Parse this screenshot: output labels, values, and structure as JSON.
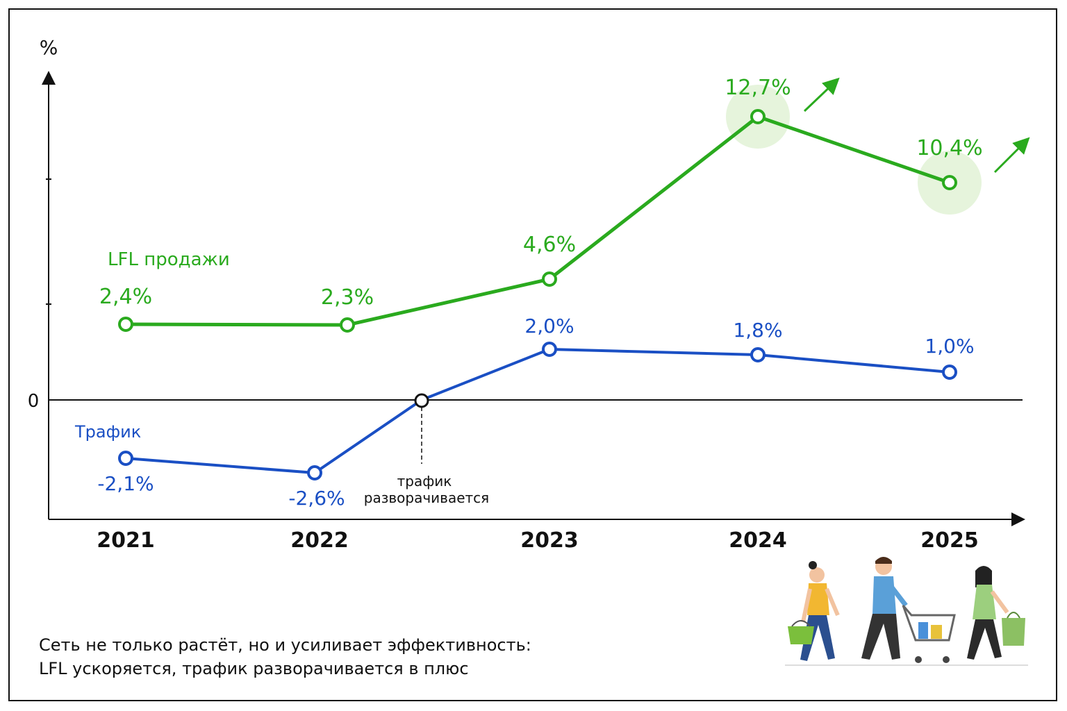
{
  "chart_data": {
    "type": "line",
    "y_unit_label": "%",
    "zero_label": "0",
    "categories": [
      "2021",
      "2022",
      "2023",
      "2024",
      "2025"
    ],
    "series": [
      {
        "name": "LFL продажи",
        "color": "#2aaa1e",
        "values": [
          2.4,
          2.3,
          4.6,
          12.7,
          10.4
        ],
        "labels": [
          "2,4%",
          "2,3%",
          "4,6%",
          "12,7%",
          "10,4%"
        ],
        "highlighted": [
          false,
          false,
          false,
          true,
          true
        ]
      },
      {
        "name": "Трафик",
        "color": "#1a4fc4",
        "values": [
          -2.1,
          -2.6,
          2.0,
          1.8,
          1.0
        ],
        "labels": [
          "-2,1%",
          "-2,6%",
          "2,0%",
          "1,8%",
          "1,0%"
        ]
      }
    ],
    "annotation": {
      "text_line1": "трафик",
      "text_line2": "разворачивается",
      "x_between": [
        "2022",
        "2023"
      ],
      "y": 0
    }
  },
  "caption": {
    "line1": "Сеть не только растёт, но и усиливает эффективность:",
    "line2": "LFL ускоряется, трафик разворачивается в плюс"
  },
  "illustration": {
    "description_icons": [
      "woman-with-basket-icon",
      "man-with-cart-icon",
      "woman-with-bag-icon"
    ]
  }
}
